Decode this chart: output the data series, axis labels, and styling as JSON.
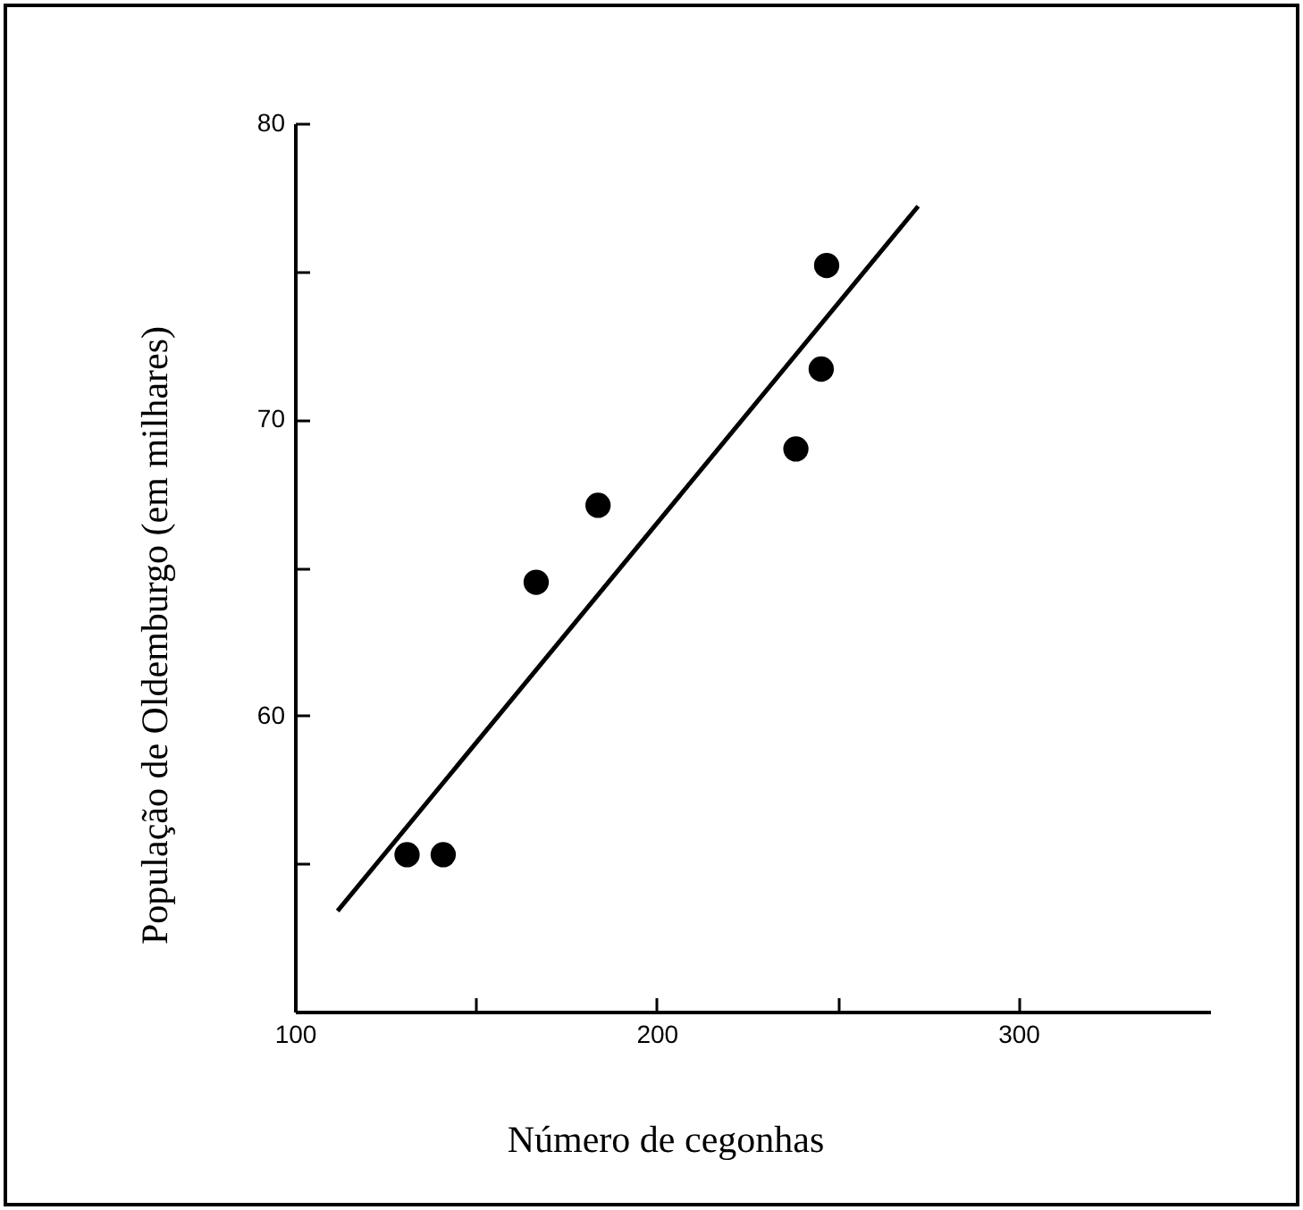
{
  "chart_data": {
    "type": "scatter",
    "xlabel": "Número de cegonhas",
    "ylabel": "População de Oldemburgo (em milhares)",
    "xlim": [
      100,
      353
    ],
    "ylim": [
      50,
      80
    ],
    "xticks": [
      100,
      {
        "value": 150,
        "label": null
      },
      200,
      {
        "value": 250,
        "label": null
      },
      300
    ],
    "yticks": [
      {
        "value": 55,
        "label": null
      },
      60,
      {
        "value": 65,
        "label": null
      },
      70,
      {
        "value": 75,
        "label": null
      },
      80
    ],
    "grid": false,
    "legend": false,
    "marker": "circle",
    "series": [
      {
        "color": "#000000",
        "x": [
          131,
          141,
          166.7,
          183.8,
          238.5,
          245.5,
          247
        ],
        "values": [
          55.3,
          55.3,
          64.5,
          67.1,
          69.0,
          71.7,
          75.2
        ]
      },
      {
        "type": "line",
        "marker": "none",
        "color": "#000000",
        "x": [
          111.8,
          272.3
        ],
        "values": [
          53.4,
          77.2
        ]
      }
    ]
  }
}
